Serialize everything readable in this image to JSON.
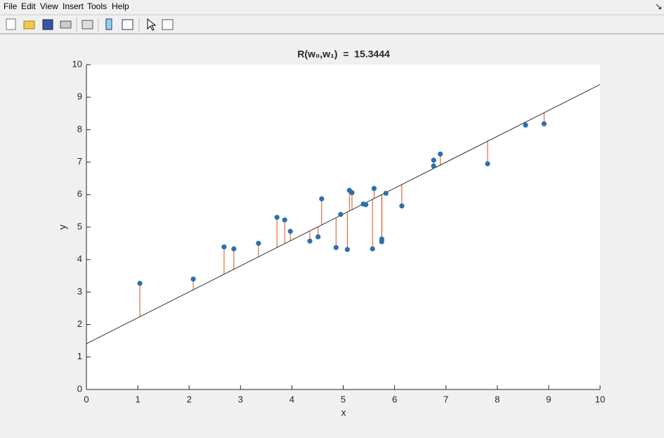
{
  "menu": [
    "File",
    "Edit",
    "View",
    "Insert",
    "Tools",
    "Help"
  ],
  "chart_data": {
    "type": "scatter",
    "title": "R(w₀,w₁)  =  15.3444",
    "xlabel": "x",
    "ylabel": "y",
    "xlim": [
      0,
      10
    ],
    "ylim": [
      0,
      10
    ],
    "xticks": [
      0,
      1,
      2,
      3,
      4,
      5,
      6,
      7,
      8,
      9,
      10
    ],
    "yticks": [
      0,
      1,
      2,
      3,
      4,
      5,
      6,
      7,
      8,
      9,
      10
    ],
    "series": [
      {
        "color": "#2a6fb0",
        "x": [
          1.04,
          2.08,
          2.68,
          2.87,
          3.35,
          3.71,
          3.86,
          3.97,
          4.35,
          4.51,
          4.58,
          4.86,
          4.95,
          5.08,
          5.12,
          5.17,
          5.39,
          5.44,
          5.57,
          5.6,
          5.75,
          5.75,
          5.83,
          6.14,
          6.76,
          6.76,
          6.89,
          7.81,
          8.55,
          8.91
        ],
        "values": [
          3.27,
          3.4,
          4.39,
          4.33,
          4.5,
          5.3,
          5.22,
          4.87,
          4.57,
          4.7,
          5.87,
          4.37,
          5.39,
          4.31,
          6.13,
          6.06,
          5.71,
          5.69,
          4.33,
          6.19,
          4.63,
          4.55,
          6.04,
          5.65,
          6.88,
          7.06,
          7.25,
          6.95,
          8.14,
          8.18
        ]
      }
    ],
    "fit": {
      "color": "#000000",
      "x": [
        0,
        10
      ],
      "values": [
        1.41,
        9.39
      ]
    },
    "residual_color": "#d95319"
  }
}
